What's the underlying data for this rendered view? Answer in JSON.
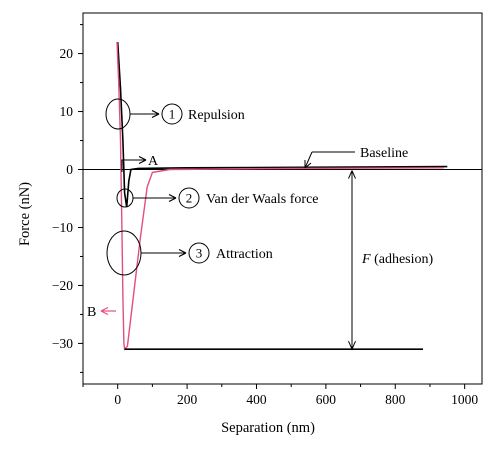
{
  "chart_data": {
    "type": "line",
    "xlabel": "Separation (nm)",
    "ylabel": "Force (nN)",
    "xlim": [
      -100,
      1050
    ],
    "ylim": [
      -37,
      27
    ],
    "x_ticks": [
      0,
      200,
      400,
      600,
      800,
      1000
    ],
    "y_ticks": [
      20,
      10,
      0,
      -10,
      -20,
      -30
    ],
    "grid": false,
    "series": [
      {
        "color": "#000000",
        "points": [
          [
            0,
            22
          ],
          [
            8,
            14
          ],
          [
            15,
            5
          ],
          [
            20,
            -4
          ],
          [
            26,
            -6.5
          ],
          [
            32,
            -2
          ],
          [
            38,
            0
          ],
          [
            60,
            0.2
          ],
          [
            200,
            0.3
          ],
          [
            600,
            0.4
          ],
          [
            950,
            0.5
          ]
        ]
      },
      {
        "color": "#e0507a",
        "points": [
          [
            -2,
            22
          ],
          [
            3,
            15
          ],
          [
            8,
            5
          ],
          [
            12,
            -10
          ],
          [
            15,
            -22
          ],
          [
            18,
            -30
          ],
          [
            20,
            -31
          ],
          [
            28,
            -30.5
          ],
          [
            45,
            -22
          ],
          [
            65,
            -12
          ],
          [
            85,
            -3
          ],
          [
            100,
            -0.5
          ],
          [
            150,
            0
          ],
          [
            500,
            0.2
          ],
          [
            940,
            0.3
          ]
        ]
      },
      {
        "color": "#000000",
        "points": [
          [
            20,
            -31
          ],
          [
            300,
            -31
          ],
          [
            600,
            -31
          ],
          [
            880,
            -31
          ]
        ]
      }
    ],
    "annotations": [
      {
        "number": "1",
        "text": "Repulsion"
      },
      {
        "number": "2",
        "text": "Van der Waals force"
      },
      {
        "number": "3",
        "text": "Attraction"
      },
      {
        "text": "A"
      },
      {
        "text": "B"
      },
      {
        "text": "Baseline"
      },
      {
        "prefix": "F",
        "text": "(adhesion)"
      }
    ]
  }
}
